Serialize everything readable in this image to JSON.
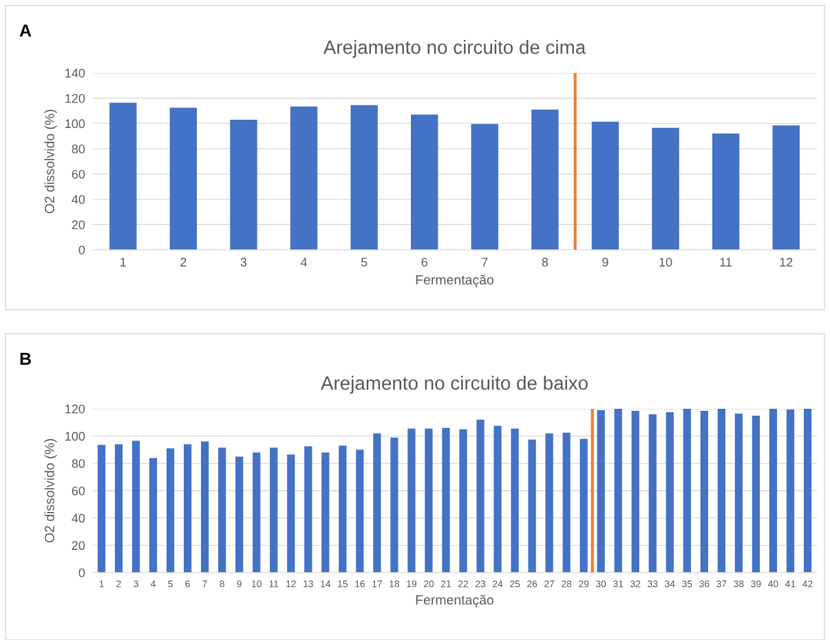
{
  "chart_data": [
    {
      "type": "bar",
      "title": "Arejamento no circuito de cima",
      "xlabel": "Fermentação",
      "ylabel": "O2 dissolvido (%)",
      "annotations": [
        "A"
      ],
      "x": [
        1,
        2,
        3,
        4,
        5,
        6,
        7,
        8,
        9,
        10,
        11,
        12
      ],
      "values": [
        116.5,
        112.5,
        103,
        113.5,
        114.5,
        107,
        99.5,
        111,
        101.5,
        96.5,
        92,
        98.5
      ],
      "color": "#4472c4",
      "xlim": [
        0.5,
        12.5
      ],
      "xticks": [
        1,
        2,
        3,
        4,
        5,
        6,
        7,
        8,
        9,
        10,
        11,
        12
      ],
      "ylim": [
        0,
        140
      ],
      "yticks": [
        0,
        20,
        40,
        60,
        80,
        100,
        120,
        140
      ],
      "grid": "y",
      "ref_lines": [
        {
          "axis": "x",
          "value": 8.5,
          "color": "#ed7d31"
        }
      ]
    },
    {
      "type": "bar",
      "title": "Arejamento no circuito de baixo",
      "xlabel": "Fermentação",
      "ylabel": "O2 dissolvido (%)",
      "annotations": [
        "B"
      ],
      "x": [
        1,
        2,
        3,
        4,
        5,
        6,
        7,
        8,
        9,
        10,
        11,
        12,
        13,
        14,
        15,
        16,
        17,
        18,
        19,
        20,
        21,
        22,
        23,
        24,
        25,
        26,
        27,
        28,
        29,
        30,
        31,
        32,
        33,
        34,
        35,
        36,
        37,
        38,
        39,
        40,
        41,
        42
      ],
      "values": [
        93.5,
        94,
        96.5,
        84,
        91,
        94,
        96,
        91.5,
        85,
        88,
        91.5,
        86.5,
        92.5,
        88,
        93,
        90,
        102,
        99,
        105.5,
        105.5,
        106,
        105,
        112,
        107.5,
        105.5,
        97.5,
        102,
        102.5,
        98,
        119,
        120,
        118.5,
        116,
        117.5,
        120,
        118.5,
        120,
        116.5,
        115,
        120,
        119.5,
        120
      ],
      "color": "#4472c4",
      "xlim": [
        0.5,
        42.5
      ],
      "xticks": [
        1,
        2,
        3,
        4,
        5,
        6,
        7,
        8,
        9,
        10,
        11,
        12,
        13,
        14,
        15,
        16,
        17,
        18,
        19,
        20,
        21,
        22,
        23,
        24,
        25,
        26,
        27,
        28,
        29,
        30,
        31,
        32,
        33,
        34,
        35,
        36,
        37,
        38,
        39,
        40,
        41,
        42
      ],
      "ylim": [
        0,
        120
      ],
      "yticks": [
        0,
        20,
        40,
        60,
        80,
        100,
        120
      ],
      "grid": "y",
      "ref_lines": [
        {
          "axis": "x",
          "value": 29.5,
          "color": "#ed7d31"
        }
      ]
    }
  ]
}
